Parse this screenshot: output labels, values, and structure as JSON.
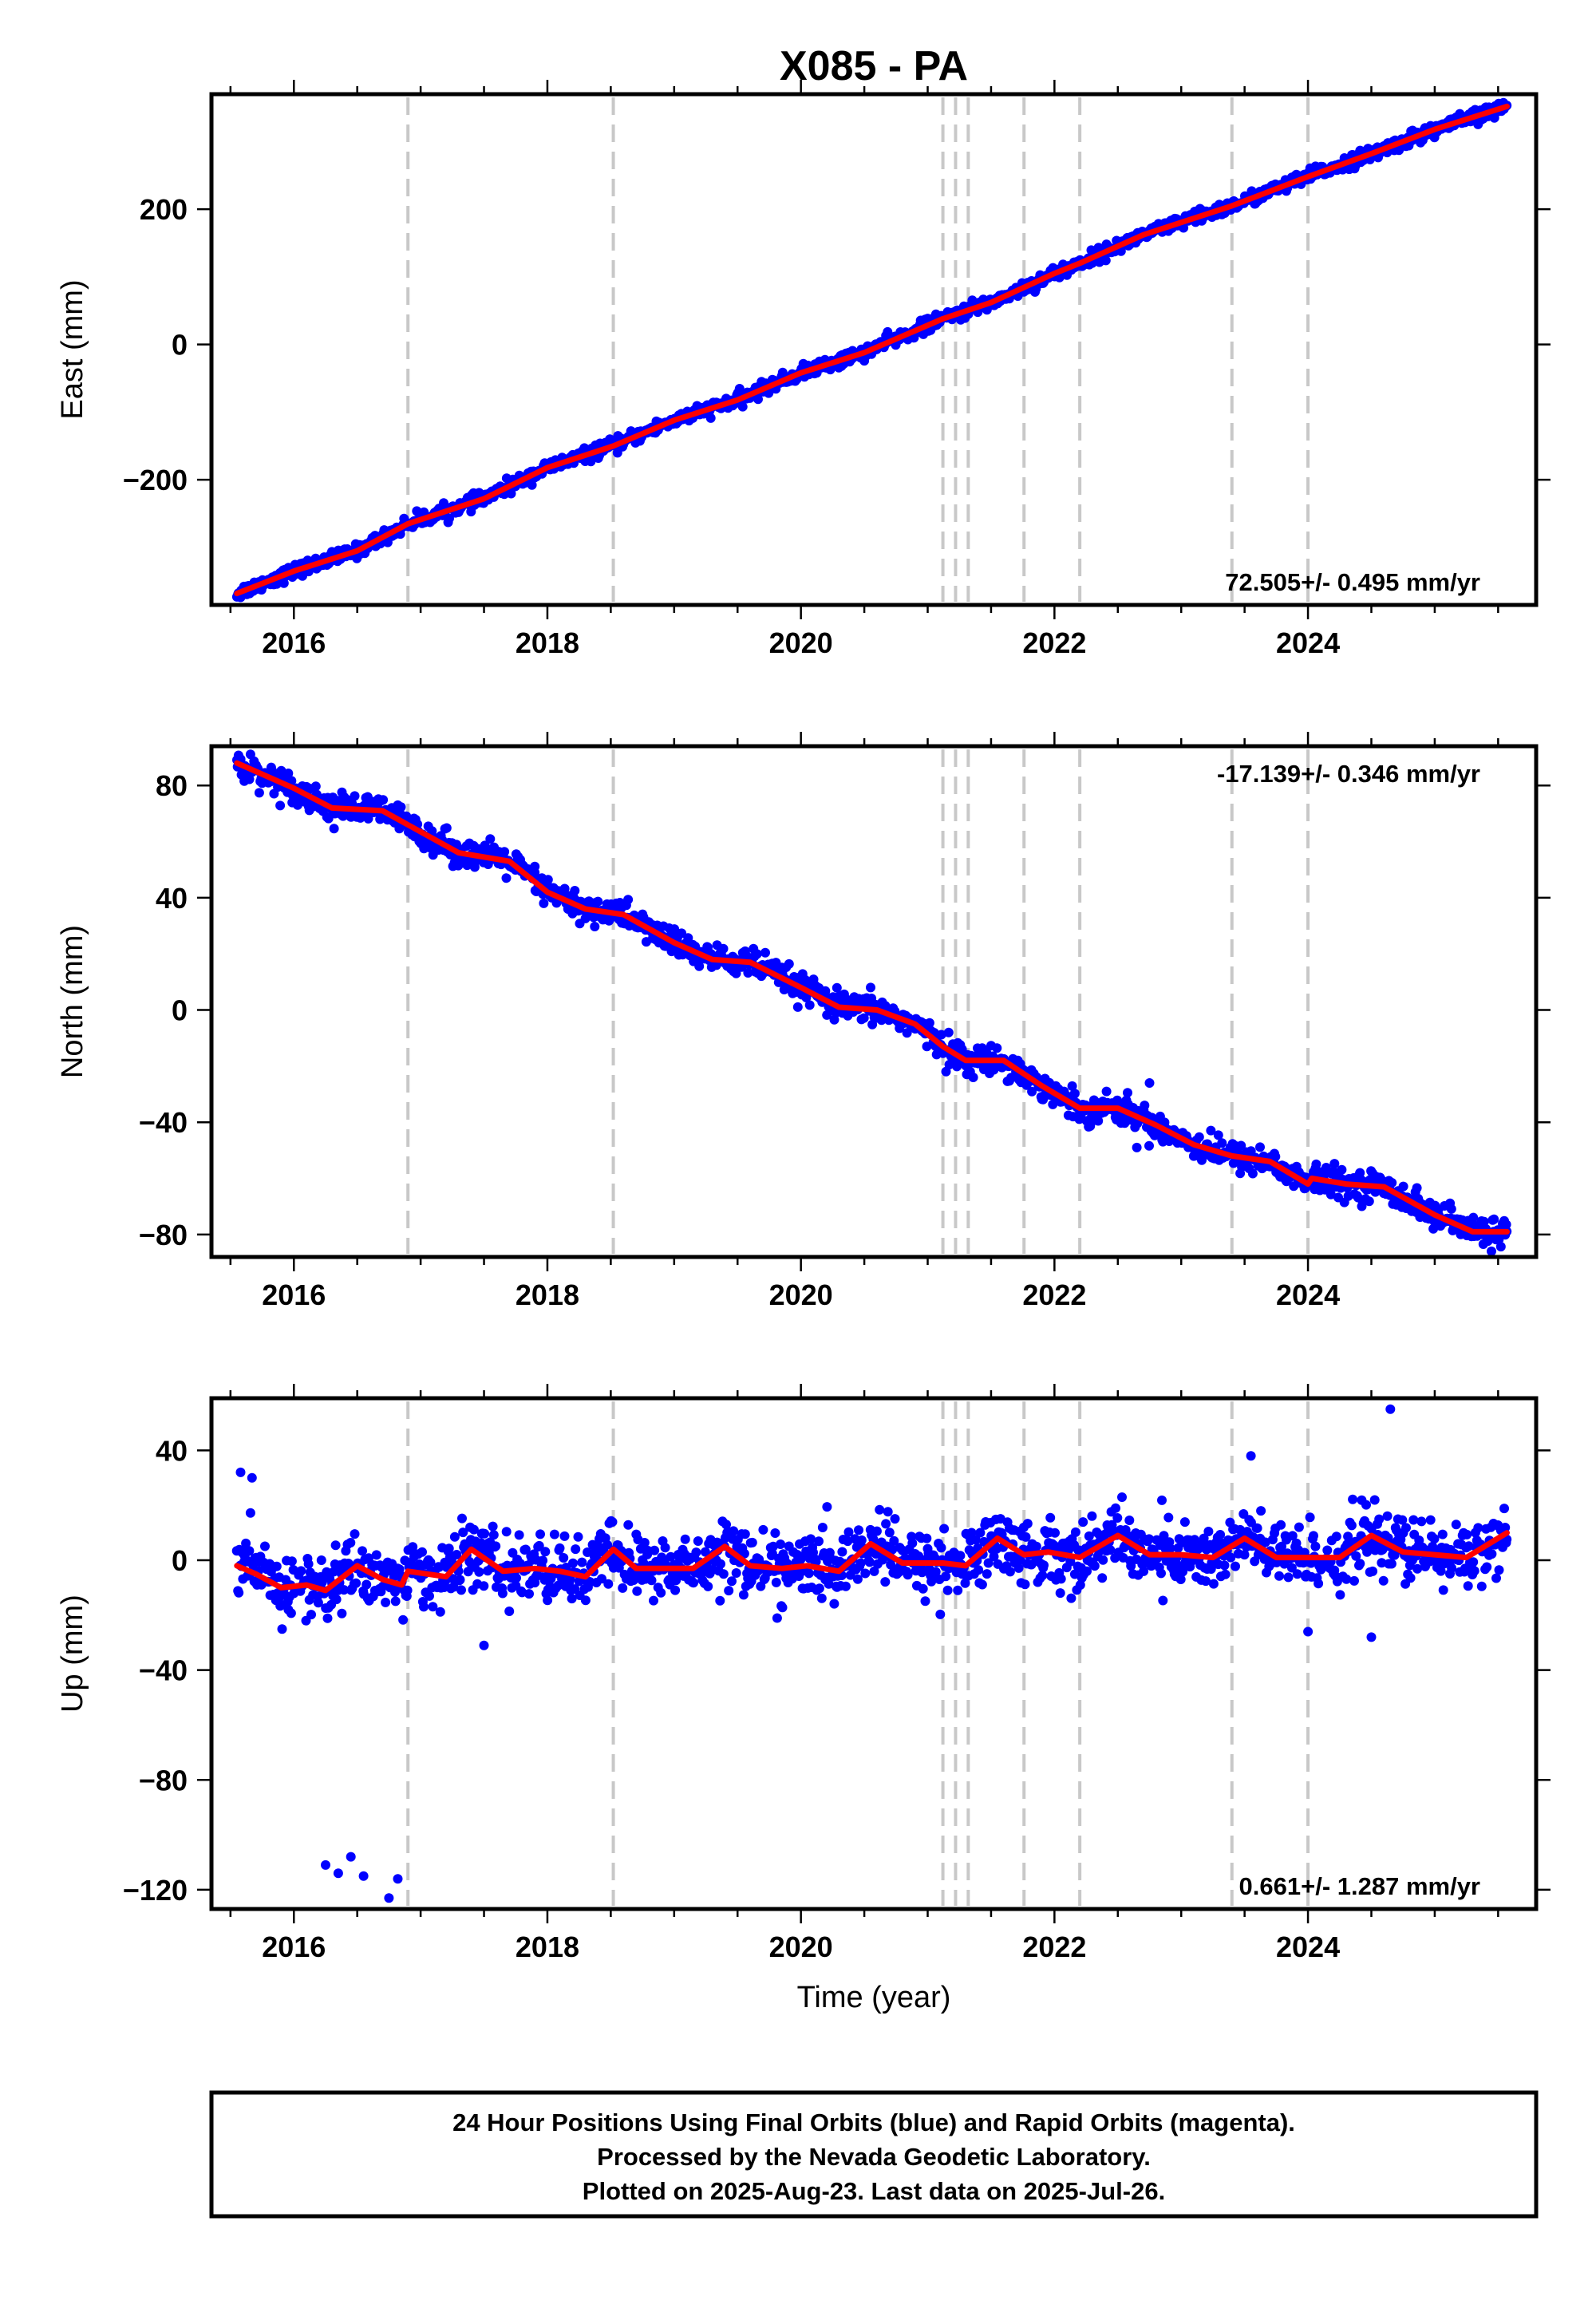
{
  "title": "X085 - PA",
  "colors": {
    "final_orbits": "#0000ff",
    "model": "#ff0000",
    "events": "#c8c8c8"
  },
  "chart_data": [
    {
      "type": "scatter",
      "component": "east",
      "ylabel": "East (mm)",
      "xlabel": "",
      "xlim": [
        2015.35,
        2025.8
      ],
      "ylim": [
        -385,
        370
      ],
      "xticks": [
        2016,
        2018,
        2020,
        2022,
        2024
      ],
      "yticks": [
        -200,
        0,
        200
      ],
      "ytick_labels": [
        "−200",
        "0",
        "200"
      ],
      "rate_text": "72.505+/- 0.495 mm/yr",
      "rate_position": "bottom-right",
      "event_lines": [
        2016.9,
        2018.52,
        2021.12,
        2021.22,
        2021.32,
        2021.76,
        2022.2,
        2023.4,
        2024.0
      ],
      "model": {
        "x": [
          2015.55,
          2016.0,
          2016.5,
          2016.9,
          2017.5,
          2018.0,
          2018.52,
          2019.0,
          2019.5,
          2020.0,
          2020.5,
          2021.12,
          2021.5,
          2022.0,
          2022.2,
          2022.7,
          2023.4,
          2024.0,
          2024.5,
          2025.0,
          2025.57
        ],
        "y": [
          -368,
          -335,
          -305,
          -265,
          -228,
          -182,
          -150,
          -112,
          -82,
          -42,
          -12,
          38,
          62,
          105,
          120,
          162,
          205,
          248,
          282,
          318,
          352
        ]
      },
      "series": [
        {
          "name": "Final Orbits",
          "noise_mm": 5,
          "outliers": []
        }
      ]
    },
    {
      "type": "scatter",
      "component": "north",
      "ylabel": "North (mm)",
      "xlabel": "",
      "xlim": [
        2015.35,
        2025.8
      ],
      "ylim": [
        -88,
        94
      ],
      "xticks": [
        2016,
        2018,
        2020,
        2022,
        2024
      ],
      "yticks": [
        -80,
        -40,
        0,
        40,
        80
      ],
      "ytick_labels": [
        "−80",
        "−40",
        "0",
        "40",
        "80"
      ],
      "rate_text": "-17.139+/- 0.346 mm/yr",
      "rate_position": "top-right",
      "event_lines": [
        2016.9,
        2018.52,
        2021.12,
        2021.22,
        2021.32,
        2021.76,
        2022.2,
        2023.4,
        2024.0
      ],
      "model": {
        "x": [
          2015.55,
          2016.0,
          2016.3,
          2016.7,
          2016.9,
          2017.3,
          2017.7,
          2018.0,
          2018.3,
          2018.6,
          2019.0,
          2019.3,
          2019.6,
          2020.0,
          2020.3,
          2020.6,
          2020.9,
          2021.12,
          2021.3,
          2021.6,
          2021.9,
          2022.2,
          2022.5,
          2022.8,
          2023.1,
          2023.4,
          2023.7,
          2024.0,
          2024.03,
          2024.3,
          2024.6,
          2025.0,
          2025.3,
          2025.57
        ],
        "y": [
          88,
          79,
          72,
          71,
          66,
          56,
          53,
          42,
          36,
          34,
          24,
          18,
          17,
          8,
          1,
          0,
          -5,
          -13,
          -18,
          -18,
          -27,
          -35,
          -35,
          -41,
          -48,
          -52,
          -54,
          -62,
          -60,
          -62,
          -63,
          -73,
          -79,
          -79
        ]
      },
      "series": [
        {
          "name": "Final Orbits",
          "noise_mm": 2.5,
          "outliers": [
            [
              2017.9,
              49
            ],
            [
              2022.75,
              -26
            ],
            [
              2022.65,
              -49
            ]
          ]
        }
      ]
    },
    {
      "type": "scatter",
      "component": "up",
      "ylabel": "Up (mm)",
      "xlabel": "Time (year)",
      "xlim": [
        2015.35,
        2025.8
      ],
      "ylim": [
        -127,
        59
      ],
      "xticks": [
        2016,
        2018,
        2020,
        2022,
        2024
      ],
      "yticks": [
        -120,
        -80,
        -40,
        0,
        40
      ],
      "ytick_labels": [
        "−120",
        "−80",
        "−40",
        "0",
        "40"
      ],
      "rate_text": "0.661+/- 1.287 mm/yr",
      "rate_position": "bottom-right",
      "event_lines": [
        2016.9,
        2018.52,
        2021.12,
        2021.22,
        2021.32,
        2021.76,
        2022.2,
        2023.4,
        2024.0
      ],
      "model": {
        "x": [
          2015.55,
          2015.7,
          2015.9,
          2016.1,
          2016.25,
          2016.5,
          2016.7,
          2016.85,
          2016.9,
          2017.05,
          2017.2,
          2017.4,
          2017.65,
          2017.9,
          2018.1,
          2018.3,
          2018.52,
          2018.7,
          2018.9,
          2019.15,
          2019.4,
          2019.6,
          2019.85,
          2020.05,
          2020.3,
          2020.55,
          2020.8,
          2021.12,
          2021.3,
          2021.55,
          2021.76,
          2021.95,
          2022.2,
          2022.5,
          2022.75,
          2023.0,
          2023.25,
          2023.5,
          2023.75,
          2024.0,
          2024.25,
          2024.5,
          2024.75,
          2025.0,
          2025.25,
          2025.57
        ],
        "y": [
          -2,
          -5,
          -10,
          -9,
          -11,
          -2,
          -7,
          -9,
          -4,
          -5,
          -6,
          4,
          -4,
          -3,
          -4,
          -6,
          4,
          -3,
          -3,
          -3,
          5,
          -2,
          -3,
          -2,
          -4,
          6,
          -1,
          -1,
          -2,
          8,
          2,
          3,
          1,
          9,
          2,
          2,
          1,
          8,
          1,
          1,
          1,
          9,
          3,
          2,
          1,
          10
        ]
      },
      "series": [
        {
          "name": "Final Orbits",
          "noise_mm": 6,
          "outliers": [
            [
              2016.25,
              -111
            ],
            [
              2016.35,
              -114
            ],
            [
              2016.45,
              -108
            ],
            [
              2016.55,
              -115
            ],
            [
              2016.75,
              -123
            ],
            [
              2016.82,
              -116
            ],
            [
              2017.5,
              -31
            ],
            [
              2024.0,
              -26
            ],
            [
              2024.5,
              -28
            ],
            [
              2024.65,
              55
            ],
            [
              2023.55,
              38
            ],
            [
              2015.58,
              32
            ],
            [
              2015.67,
              30
            ]
          ]
        }
      ]
    }
  ],
  "footer": {
    "line1": "24 Hour Positions Using Final Orbits (blue) and Rapid Orbits (magenta).",
    "line2": "Processed by the Nevada Geodetic Laboratory.",
    "line3": "Plotted on 2025-Aug-23. Last data on 2025-Jul-26."
  }
}
